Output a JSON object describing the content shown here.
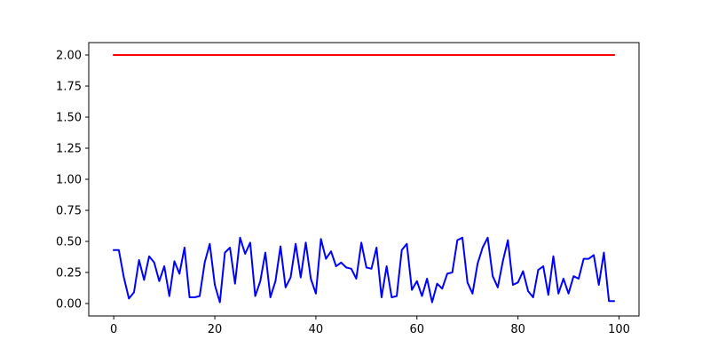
{
  "chart_data": {
    "type": "line",
    "title": "",
    "xlabel": "",
    "ylabel": "",
    "xlim": [
      -4.95,
      103.95
    ],
    "ylim": [
      -0.1,
      2.1
    ],
    "xticks": [
      0,
      20,
      40,
      60,
      80,
      100
    ],
    "xtick_labels": [
      "0",
      "20",
      "40",
      "60",
      "80",
      "100"
    ],
    "yticks": [
      0.0,
      0.25,
      0.5,
      0.75,
      1.0,
      1.25,
      1.5,
      1.75,
      2.0
    ],
    "ytick_labels": [
      "0.00",
      "0.25",
      "0.50",
      "0.75",
      "1.00",
      "1.25",
      "1.50",
      "1.75",
      "2.00"
    ],
    "grid": false,
    "legend": "none",
    "x": [
      0,
      1,
      2,
      3,
      4,
      5,
      6,
      7,
      8,
      9,
      10,
      11,
      12,
      13,
      14,
      15,
      16,
      17,
      18,
      19,
      20,
      21,
      22,
      23,
      24,
      25,
      26,
      27,
      28,
      29,
      30,
      31,
      32,
      33,
      34,
      35,
      36,
      37,
      38,
      39,
      40,
      41,
      42,
      43,
      44,
      45,
      46,
      47,
      48,
      49,
      50,
      51,
      52,
      53,
      54,
      55,
      56,
      57,
      58,
      59,
      60,
      61,
      62,
      63,
      64,
      65,
      66,
      67,
      68,
      69,
      70,
      71,
      72,
      73,
      74,
      75,
      76,
      77,
      78,
      79,
      80,
      81,
      82,
      83,
      84,
      85,
      86,
      87,
      88,
      89,
      90,
      91,
      92,
      93,
      94,
      95,
      96,
      97,
      98,
      99
    ],
    "series": [
      {
        "color": "#0000ff",
        "values": [
          0.43,
          0.43,
          0.21,
          0.04,
          0.09,
          0.35,
          0.19,
          0.38,
          0.33,
          0.18,
          0.3,
          0.06,
          0.34,
          0.24,
          0.45,
          0.05,
          0.05,
          0.06,
          0.33,
          0.48,
          0.15,
          0.01,
          0.41,
          0.45,
          0.16,
          0.53,
          0.4,
          0.49,
          0.06,
          0.18,
          0.41,
          0.05,
          0.18,
          0.46,
          0.13,
          0.21,
          0.48,
          0.21,
          0.49,
          0.2,
          0.08,
          0.52,
          0.36,
          0.42,
          0.3,
          0.33,
          0.29,
          0.28,
          0.2,
          0.49,
          0.29,
          0.28,
          0.45,
          0.05,
          0.3,
          0.05,
          0.06,
          0.43,
          0.48,
          0.11,
          0.18,
          0.06,
          0.2,
          0.01,
          0.16,
          0.12,
          0.24,
          0.25,
          0.51,
          0.53,
          0.17,
          0.08,
          0.32,
          0.45,
          0.53,
          0.22,
          0.13,
          0.34,
          0.51,
          0.15,
          0.17,
          0.26,
          0.1,
          0.05,
          0.27,
          0.3,
          0.07,
          0.38,
          0.08,
          0.2,
          0.08,
          0.22,
          0.2,
          0.36,
          0.36,
          0.39,
          0.15,
          0.41,
          0.02,
          0.02
        ]
      },
      {
        "color": "#ff0000",
        "values": [
          2.0,
          2.0,
          2.0,
          2.0,
          2.0,
          2.0,
          2.0,
          2.0,
          2.0,
          2.0,
          2.0,
          2.0,
          2.0,
          2.0,
          2.0,
          2.0,
          2.0,
          2.0,
          2.0,
          2.0,
          2.0,
          2.0,
          2.0,
          2.0,
          2.0,
          2.0,
          2.0,
          2.0,
          2.0,
          2.0,
          2.0,
          2.0,
          2.0,
          2.0,
          2.0,
          2.0,
          2.0,
          2.0,
          2.0,
          2.0,
          2.0,
          2.0,
          2.0,
          2.0,
          2.0,
          2.0,
          2.0,
          2.0,
          2.0,
          2.0,
          2.0,
          2.0,
          2.0,
          2.0,
          2.0,
          2.0,
          2.0,
          2.0,
          2.0,
          2.0,
          2.0,
          2.0,
          2.0,
          2.0,
          2.0,
          2.0,
          2.0,
          2.0,
          2.0,
          2.0,
          2.0,
          2.0,
          2.0,
          2.0,
          2.0,
          2.0,
          2.0,
          2.0,
          2.0,
          2.0,
          2.0,
          2.0,
          2.0,
          2.0,
          2.0,
          2.0,
          2.0,
          2.0,
          2.0,
          2.0,
          2.0,
          2.0,
          2.0,
          2.0,
          2.0,
          2.0,
          2.0,
          2.0,
          2.0,
          2.0
        ]
      }
    ]
  }
}
